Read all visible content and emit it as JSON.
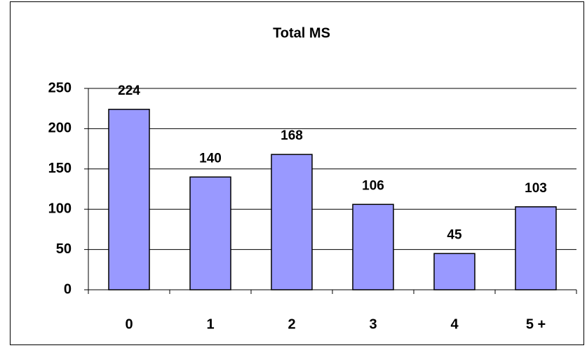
{
  "chart_data": {
    "type": "bar",
    "title": "Total MS",
    "categories": [
      "0",
      "1",
      "2",
      "3",
      "4",
      "5 +"
    ],
    "values": [
      224,
      140,
      168,
      106,
      45,
      103
    ],
    "color": "#9999ff",
    "ylim": [
      0,
      250
    ],
    "yticks": [
      0,
      50,
      100,
      150,
      200,
      250
    ],
    "grid": true
  }
}
